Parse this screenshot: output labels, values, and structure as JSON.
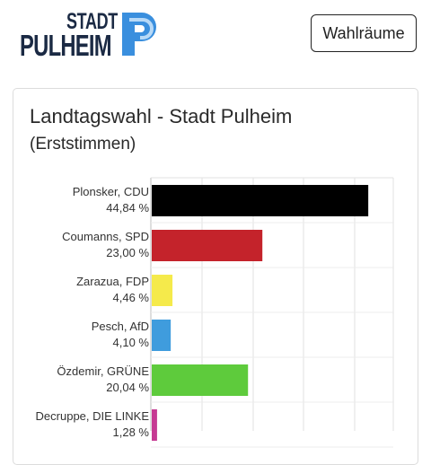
{
  "header": {
    "logo": {
      "line1": "STADT",
      "line2": "PULHEIM",
      "mark": "P"
    },
    "button_label": "Wahlräume"
  },
  "card": {
    "title": "Landtagswahl - Stadt Pulheim",
    "subtitle": "(Erststimmen)"
  },
  "colors": {
    "CDU": "#000000",
    "SPD": "#c4232b",
    "FDP": "#f5ea4b",
    "AfD": "#3f9cdd",
    "GRÜNE": "#5ecb3c",
    "DIE LINKE": "#c63a93",
    "logo_blue": "#3a8fde",
    "logo_light": "#b7d9f7",
    "logo_text": "#1b2a44"
  },
  "chart_data": {
    "type": "bar",
    "orientation": "horizontal",
    "categories": [
      "Plonsker, CDU",
      "Coumanns, SPD",
      "Zarazua, FDP",
      "Pesch, AfD",
      "Özdemir, GRÜNE",
      "Decruppe, DIE LINKE"
    ],
    "value_labels": [
      "44,84 %",
      "23,00 %",
      "4,46 %",
      "4,10 %",
      "20,04 %",
      "1,28 %"
    ],
    "values": [
      44.84,
      23.0,
      4.46,
      4.1,
      20.04,
      1.28
    ],
    "bar_colors": [
      "#000000",
      "#c4232b",
      "#f5ea4b",
      "#3f9cdd",
      "#5ecb3c",
      "#c63a93"
    ],
    "xlim": [
      0,
      50
    ],
    "grid": true
  }
}
